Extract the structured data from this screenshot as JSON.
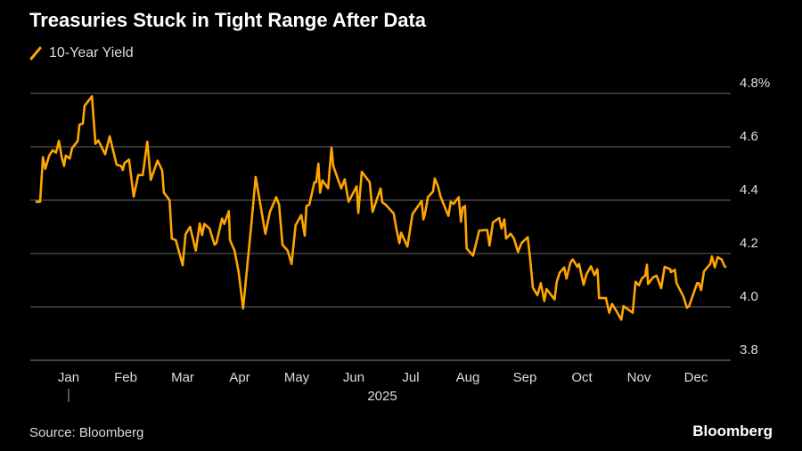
{
  "title": "Treasuries Stuck in Tight Range After Data",
  "legend": {
    "label": "10-Year Yield",
    "color": "#ffa500"
  },
  "source": "Source: Bloomberg",
  "brand": "Bloomberg",
  "chart_data": {
    "type": "line",
    "title": "Treasuries Stuck in Tight Range After Data",
    "xlabel": "2025",
    "ylabel": "",
    "ylim": [
      3.8,
      4.8
    ],
    "yticks": [
      {
        "v": 4.8,
        "label": "4.8%"
      },
      {
        "v": 4.6,
        "label": "4.6"
      },
      {
        "v": 4.4,
        "label": "4.4"
      },
      {
        "v": 4.2,
        "label": "4.2"
      },
      {
        "v": 4.0,
        "label": "4.0"
      },
      {
        "v": 3.8,
        "label": "3.8"
      }
    ],
    "x_unit": "months since Jan 1 2025",
    "xticks": [
      "Jan",
      "Feb",
      "Mar",
      "Apr",
      "May",
      "Jun",
      "Jul",
      "Aug",
      "Sep",
      "Oct",
      "Nov",
      "Dec"
    ],
    "year_label": "2025",
    "grid": true,
    "legend_position": "top-left",
    "series": [
      {
        "name": "10-Year Yield",
        "color": "#ffa500",
        "points": [
          [
            -0.08,
            4.394
          ],
          [
            0,
            4.394
          ],
          [
            0.05,
            4.561
          ],
          [
            0.09,
            4.517
          ],
          [
            0.16,
            4.567
          ],
          [
            0.22,
            4.587
          ],
          [
            0.28,
            4.578
          ],
          [
            0.33,
            4.622
          ],
          [
            0.38,
            4.561
          ],
          [
            0.42,
            4.528
          ],
          [
            0.45,
            4.567
          ],
          [
            0.52,
            4.556
          ],
          [
            0.56,
            4.594
          ],
          [
            0.66,
            4.622
          ],
          [
            0.69,
            4.683
          ],
          [
            0.75,
            4.687
          ],
          [
            0.78,
            4.753
          ],
          [
            0.91,
            4.789
          ],
          [
            0.97,
            4.611
          ],
          [
            1.02,
            4.624
          ],
          [
            1.14,
            4.572
          ],
          [
            1.22,
            4.639
          ],
          [
            1.34,
            4.533
          ],
          [
            1.42,
            4.528
          ],
          [
            1.45,
            4.513
          ],
          [
            1.48,
            4.539
          ],
          [
            1.56,
            4.552
          ],
          [
            1.64,
            4.413
          ],
          [
            1.72,
            4.494
          ],
          [
            1.8,
            4.494
          ],
          [
            1.88,
            4.619
          ],
          [
            1.94,
            4.476
          ],
          [
            2.06,
            4.548
          ],
          [
            2.14,
            4.511
          ],
          [
            2.17,
            4.428
          ],
          [
            2.27,
            4.4
          ],
          [
            2.31,
            4.256
          ],
          [
            2.38,
            4.25
          ],
          [
            2.5,
            4.156
          ],
          [
            2.55,
            4.272
          ],
          [
            2.63,
            4.3
          ],
          [
            2.73,
            4.211
          ],
          [
            2.8,
            4.313
          ],
          [
            2.84,
            4.269
          ],
          [
            2.88,
            4.311
          ],
          [
            2.97,
            4.294
          ],
          [
            3.06,
            4.233
          ],
          [
            3.09,
            4.239
          ],
          [
            3.19,
            4.331
          ],
          [
            3.23,
            4.311
          ],
          [
            3.31,
            4.359
          ],
          [
            3.33,
            4.25
          ],
          [
            3.41,
            4.211
          ],
          [
            3.48,
            4.133
          ],
          [
            3.56,
            3.994
          ],
          [
            3.7,
            4.3
          ],
          [
            3.78,
            4.487
          ],
          [
            3.95,
            4.274
          ],
          [
            4.03,
            4.356
          ],
          [
            4.14,
            4.411
          ],
          [
            4.19,
            4.383
          ],
          [
            4.25,
            4.233
          ],
          [
            4.34,
            4.211
          ],
          [
            4.41,
            4.161
          ],
          [
            4.48,
            4.306
          ],
          [
            4.58,
            4.344
          ],
          [
            4.64,
            4.267
          ],
          [
            4.67,
            4.378
          ],
          [
            4.72,
            4.383
          ],
          [
            4.81,
            4.467
          ],
          [
            4.84,
            4.467
          ],
          [
            4.88,
            4.537
          ],
          [
            4.91,
            4.428
          ],
          [
            4.95,
            4.474
          ],
          [
            5.05,
            4.444
          ],
          [
            5.11,
            4.597
          ],
          [
            5.14,
            4.528
          ],
          [
            5.28,
            4.444
          ],
          [
            5.34,
            4.478
          ],
          [
            5.41,
            4.394
          ],
          [
            5.55,
            4.452
          ],
          [
            5.58,
            4.352
          ],
          [
            5.64,
            4.506
          ],
          [
            5.78,
            4.467
          ],
          [
            5.83,
            4.356
          ],
          [
            5.97,
            4.444
          ],
          [
            6.0,
            4.392
          ],
          [
            6.06,
            4.383
          ],
          [
            6.2,
            4.35
          ],
          [
            6.25,
            4.289
          ],
          [
            6.3,
            4.239
          ],
          [
            6.33,
            4.278
          ],
          [
            6.44,
            4.226
          ],
          [
            6.53,
            4.348
          ],
          [
            6.69,
            4.397
          ],
          [
            6.72,
            4.328
          ],
          [
            6.75,
            4.35
          ],
          [
            6.8,
            4.411
          ],
          [
            6.89,
            4.433
          ],
          [
            6.92,
            4.481
          ],
          [
            6.98,
            4.45
          ],
          [
            7.02,
            4.414
          ],
          [
            7.16,
            4.341
          ],
          [
            7.2,
            4.394
          ],
          [
            7.25,
            4.386
          ],
          [
            7.34,
            4.411
          ],
          [
            7.38,
            4.319
          ],
          [
            7.41,
            4.372
          ],
          [
            7.45,
            4.378
          ],
          [
            7.48,
            4.219
          ],
          [
            7.59,
            4.192
          ],
          [
            7.7,
            4.286
          ],
          [
            7.84,
            4.288
          ],
          [
            7.88,
            4.23
          ],
          [
            7.94,
            4.317
          ],
          [
            8.05,
            4.333
          ],
          [
            8.09,
            4.294
          ],
          [
            8.14,
            4.328
          ],
          [
            8.17,
            4.256
          ],
          [
            8.25,
            4.274
          ],
          [
            8.31,
            4.256
          ],
          [
            8.38,
            4.206
          ],
          [
            8.44,
            4.239
          ],
          [
            8.55,
            4.261
          ],
          [
            8.59,
            4.183
          ],
          [
            8.64,
            4.072
          ],
          [
            8.72,
            4.044
          ],
          [
            8.78,
            4.089
          ],
          [
            8.84,
            4.022
          ],
          [
            8.88,
            4.067
          ],
          [
            9.02,
            4.028
          ],
          [
            9.06,
            4.094
          ],
          [
            9.11,
            4.128
          ],
          [
            9.19,
            4.148
          ],
          [
            9.23,
            4.106
          ],
          [
            9.3,
            4.167
          ],
          [
            9.34,
            4.178
          ],
          [
            9.42,
            4.15
          ],
          [
            9.45,
            4.161
          ],
          [
            9.53,
            4.083
          ],
          [
            9.58,
            4.122
          ],
          [
            9.66,
            4.152
          ],
          [
            9.72,
            4.119
          ],
          [
            9.77,
            4.141
          ],
          [
            9.78,
            4.119
          ],
          [
            9.8,
            4.033
          ],
          [
            9.92,
            4.033
          ],
          [
            9.98,
            3.978
          ],
          [
            10.03,
            4.011
          ],
          [
            10.11,
            3.983
          ],
          [
            10.19,
            3.952
          ],
          [
            10.23,
            4.003
          ],
          [
            10.39,
            3.978
          ],
          [
            10.44,
            4.094
          ],
          [
            10.5,
            4.081
          ],
          [
            10.55,
            4.106
          ],
          [
            10.61,
            4.117
          ],
          [
            10.64,
            4.158
          ],
          [
            10.66,
            4.086
          ],
          [
            10.75,
            4.111
          ],
          [
            10.81,
            4.117
          ],
          [
            10.89,
            4.07
          ],
          [
            10.95,
            4.15
          ],
          [
            11.05,
            4.141
          ],
          [
            11.06,
            4.13
          ],
          [
            11.13,
            4.139
          ],
          [
            11.16,
            4.089
          ],
          [
            11.28,
            4.039
          ],
          [
            11.34,
            3.997
          ],
          [
            11.38,
            4.003
          ],
          [
            11.52,
            4.089
          ],
          [
            11.55,
            4.089
          ],
          [
            11.59,
            4.063
          ],
          [
            11.64,
            4.133
          ],
          [
            11.75,
            4.161
          ],
          [
            11.78,
            4.189
          ],
          [
            11.83,
            4.148
          ],
          [
            11.88,
            4.186
          ],
          [
            11.95,
            4.178
          ],
          [
            12.0,
            4.153
          ],
          [
            12.03,
            4.148
          ]
        ]
      }
    ]
  }
}
